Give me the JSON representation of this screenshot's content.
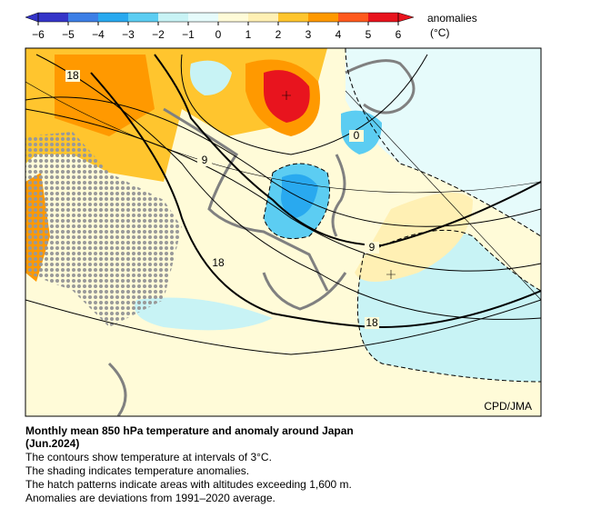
{
  "colorbar": {
    "label": "anomalies",
    "unit": "(°C)",
    "ticks": [
      {
        "value": -6,
        "label": "−6"
      },
      {
        "value": -5,
        "label": "−5"
      },
      {
        "value": -4,
        "label": "−4"
      },
      {
        "value": -3,
        "label": "−3"
      },
      {
        "value": -2,
        "label": "−2"
      },
      {
        "value": -1,
        "label": "−1"
      },
      0,
      1,
      2,
      3,
      4,
      5,
      6
    ],
    "colors": [
      "#3535c8",
      "#3d7fe6",
      "#29a9ef",
      "#5ccdf2",
      "#c8f3f5",
      "#e6fbfb",
      "#fffbd8",
      "#fff0b4",
      "#ffc52e",
      "#ff9900",
      "#ff5a1e",
      "#e8141e"
    ]
  },
  "map": {
    "contour_labels": [
      "18",
      "9",
      "0",
      "9",
      "18",
      "18"
    ],
    "credit": "CPD/JMA"
  },
  "caption": {
    "title": "Monthly mean 850 hPa temperature and anomaly around Japan",
    "date": "(Jun.2024)",
    "lines": [
      "The contours show temperature at intervals of 3°C.",
      "The shading indicates temperature anomalies.",
      "The hatch patterns indicate areas with altitudes exceeding 1,600 m.",
      "Anomalies are deviations from 1991–2020 average."
    ]
  }
}
